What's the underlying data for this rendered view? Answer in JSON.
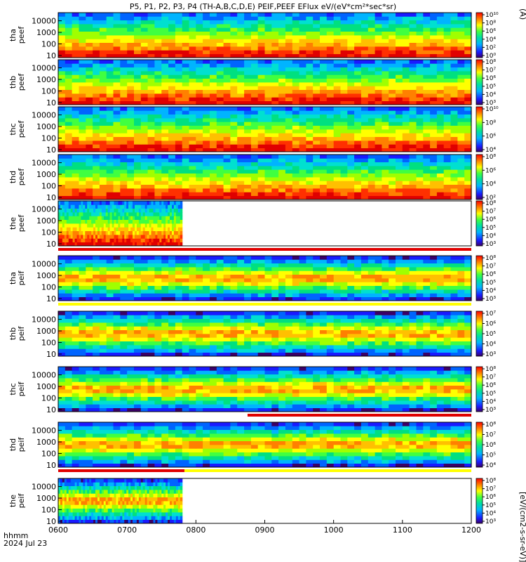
{
  "chart_data": {
    "type": "heatmap",
    "title": "P5, P1, P2, P3, P4 (TH-A,B,C,D,E) PEIF,PEEF EFlux eV/(eV*cm²*sec*sr)",
    "xlabel_line1": "hhmm",
    "xlabel_line2": "2024 Jul 23",
    "xtick_labels": [
      "0600",
      "0700",
      "0800",
      "0900",
      "1000",
      "1100",
      "1200"
    ],
    "x_range": [
      "0600",
      "1200"
    ],
    "yscale": "log",
    "ytick_labels": [
      "10",
      "100",
      "1000",
      "10000"
    ],
    "colorbar_label_top": "(A)",
    "colorbar_label_bottom": "[eV/(cm2-s-sr-eV)]",
    "colorscale": "rainbow",
    "panels": [
      {
        "probe": "tha",
        "species": "peef",
        "label1": "tha",
        "label2": "peef",
        "cbar_ticks": [
          "10⁰",
          "10²",
          "10⁴",
          "10⁶",
          "10⁸",
          "10¹⁰"
        ],
        "data_end": "1200",
        "band": "none"
      },
      {
        "probe": "thb",
        "species": "peef",
        "label1": "thb",
        "label2": "peef",
        "cbar_ticks": [
          "10³",
          "10⁴",
          "10⁵",
          "10⁶",
          "10⁷",
          "10⁸"
        ],
        "data_end": "1200",
        "band": "none"
      },
      {
        "probe": "thc",
        "species": "peef",
        "label1": "thc",
        "label2": "peef",
        "cbar_ticks": [
          "10⁴",
          "10⁶",
          "10⁸",
          "10¹⁰"
        ],
        "data_end": "1200",
        "band": "none"
      },
      {
        "probe": "thd",
        "species": "peef",
        "label1": "thd",
        "label2": "peef",
        "cbar_ticks": [
          "10²",
          "10⁴",
          "10⁶",
          "10⁸"
        ],
        "data_end": "1200",
        "band": "none"
      },
      {
        "probe": "the",
        "species": "peef",
        "label1": "the",
        "label2": "peef",
        "cbar_ticks": [
          "10³",
          "10⁴",
          "10⁵",
          "10⁶",
          "10⁷",
          "10⁸"
        ],
        "data_end": "0748",
        "band": "red"
      },
      {
        "probe": "tha",
        "species": "peif",
        "label1": "tha",
        "label2": "peif",
        "cbar_ticks": [
          "10³",
          "10⁴",
          "10⁵",
          "10⁶",
          "10⁷",
          "10⁸"
        ],
        "data_end": "1200",
        "band": "yellow"
      },
      {
        "probe": "thb",
        "species": "peif",
        "label1": "thb",
        "label2": "peif",
        "cbar_ticks": [
          "10³",
          "10⁴",
          "10⁵",
          "10⁶",
          "10⁷"
        ],
        "data_end": "1200",
        "band": "none"
      },
      {
        "probe": "thc",
        "species": "peif",
        "label1": "thc",
        "label2": "peif",
        "cbar_ticks": [
          "10³",
          "10⁴",
          "10⁵",
          "10⁶",
          "10⁷",
          "10⁸"
        ],
        "data_end": "1200",
        "band": "red-after-0845"
      },
      {
        "probe": "thd",
        "species": "peif",
        "label1": "thd",
        "label2": "peif",
        "cbar_ticks": [
          "10⁴",
          "10⁵",
          "10⁶",
          "10⁷",
          "10⁸"
        ],
        "data_end": "1200",
        "band": "red-to-0750-then-yellow"
      },
      {
        "probe": "the",
        "species": "peif",
        "label1": "the",
        "label2": "peif",
        "cbar_ticks": [
          "10³",
          "10⁴",
          "10⁵",
          "10⁶",
          "10⁷",
          "10⁸"
        ],
        "data_end": "0748",
        "band": "none"
      }
    ]
  }
}
